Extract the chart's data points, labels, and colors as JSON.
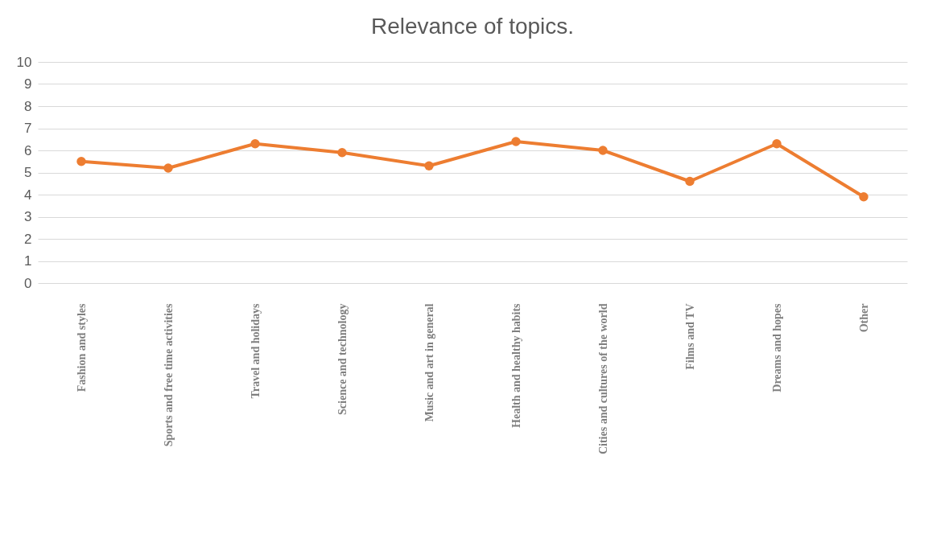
{
  "chart_data": {
    "type": "line",
    "title": "Relevance of topics.",
    "categories": [
      "Fashion and styles",
      "Sports and free time activities",
      "Travel and holidays",
      "Science and technology",
      "Music and art in general",
      "Health and healthy habits",
      "Cities and cultures of the world",
      "Films and TV",
      "Dreams and hopes",
      "Other"
    ],
    "series": [
      {
        "color": "#ed7d31",
        "values": [
          5.5,
          5.2,
          6.3,
          5.9,
          5.3,
          6.4,
          6.0,
          4.6,
          6.3,
          3.9
        ]
      }
    ],
    "ylim": [
      0,
      10
    ],
    "yticks": [
      0,
      1,
      2,
      3,
      4,
      5,
      6,
      7,
      8,
      9,
      10
    ],
    "grid": "y",
    "marker": "circle",
    "line_style": "solid"
  }
}
